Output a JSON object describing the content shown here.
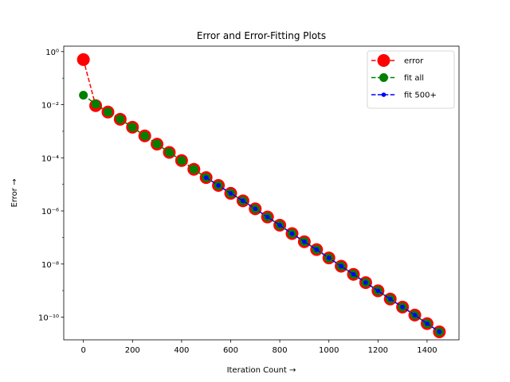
{
  "chart_data": {
    "type": "line",
    "title": "Error and Error-Fitting Plots",
    "xlabel": "Iteration Count →",
    "ylabel": "Error →",
    "xlim": [
      -80,
      1530
    ],
    "ylim": [
      1.4e-11,
      1.6
    ],
    "yscale": "log",
    "grid": false,
    "legend_position": "top-right",
    "x_ticks": [
      0,
      200,
      400,
      600,
      800,
      1000,
      1200,
      1400
    ],
    "y_ticks": [
      {
        "value": 1,
        "label": "10⁰"
      },
      {
        "value": 0.01,
        "label": "10⁻²"
      },
      {
        "value": 0.0001,
        "label": "10⁻⁴"
      },
      {
        "value": 1e-06,
        "label": "10⁻⁶"
      },
      {
        "value": 1e-08,
        "label": "10⁻⁸"
      },
      {
        "value": 1e-10,
        "label": "10⁻¹⁰"
      }
    ],
    "series": [
      {
        "name": "error",
        "color": "#ff0000",
        "line_style": "dashed",
        "marker": "circle-large",
        "x": [
          0,
          50,
          100,
          150,
          200,
          250,
          300,
          350,
          400,
          450,
          500,
          550,
          600,
          650,
          700,
          750,
          800,
          850,
          900,
          950,
          1000,
          1050,
          1100,
          1150,
          1200,
          1250,
          1300,
          1350,
          1400,
          1450
        ],
        "y": [
          0.5,
          0.0092,
          0.00528,
          0.00283,
          0.00142,
          0.000669,
          0.000327,
          0.00016,
          7.9e-05,
          3.7e-05,
          1.8e-05,
          9.1e-06,
          4.6e-06,
          2.4e-06,
          1.2e-06,
          5.9e-07,
          2.9e-07,
          1.4e-07,
          6.9e-08,
          3.5e-08,
          1.7e-08,
          8.3e-09,
          4.1e-09,
          2e-09,
          9.8e-10,
          4.8e-10,
          2.4e-10,
          1.2e-10,
          5.7e-11,
          2.8e-11
        ]
      },
      {
        "name": "fit all",
        "color": "#008000",
        "line_style": "dashed",
        "marker": "circle-medium",
        "x": [
          0,
          50,
          100,
          150,
          200,
          250,
          300,
          350,
          400,
          450,
          500,
          550,
          600,
          650,
          700,
          750,
          800,
          850,
          900,
          950,
          1000,
          1050,
          1100,
          1150,
          1200,
          1250,
          1300,
          1350,
          1400,
          1450
        ],
        "y": [
          0.0228,
          0.0106,
          0.00528,
          0.00283,
          0.00142,
          0.000669,
          0.000327,
          0.00016,
          7.9e-05,
          3.7e-05,
          1.8e-05,
          9.1e-06,
          4.6e-06,
          2.4e-06,
          1.2e-06,
          5.9e-07,
          2.9e-07,
          1.4e-07,
          6.9e-08,
          3.5e-08,
          1.7e-08,
          8.3e-09,
          4.1e-09,
          2e-09,
          9.8e-10,
          4.8e-10,
          2.4e-10,
          1.2e-10,
          5.7e-11,
          2.8e-11
        ]
      },
      {
        "name": "fit 500+",
        "color": "#0000ff",
        "line_style": "dashed",
        "marker": "circle-small",
        "x": [
          500,
          550,
          600,
          650,
          700,
          750,
          800,
          850,
          900,
          950,
          1000,
          1050,
          1100,
          1150,
          1200,
          1250,
          1300,
          1350,
          1400,
          1450
        ],
        "y": [
          1.8e-05,
          9.1e-06,
          4.6e-06,
          2.4e-06,
          1.2e-06,
          5.9e-07,
          2.9e-07,
          1.4e-07,
          6.9e-08,
          3.5e-08,
          1.7e-08,
          8.3e-09,
          4.1e-09,
          2e-09,
          9.8e-10,
          4.8e-10,
          2.4e-10,
          1.2e-10,
          5.7e-11,
          2.8e-11
        ]
      }
    ]
  }
}
